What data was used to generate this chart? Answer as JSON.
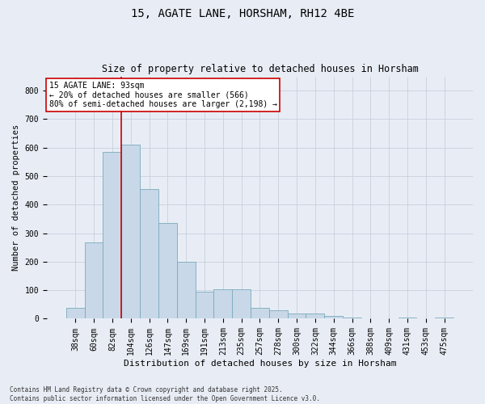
{
  "title": "15, AGATE LANE, HORSHAM, RH12 4BE",
  "subtitle": "Size of property relative to detached houses in Horsham",
  "xlabel": "Distribution of detached houses by size in Horsham",
  "ylabel": "Number of detached properties",
  "categories": [
    "38sqm",
    "60sqm",
    "82sqm",
    "104sqm",
    "126sqm",
    "147sqm",
    "169sqm",
    "191sqm",
    "213sqm",
    "235sqm",
    "257sqm",
    "278sqm",
    "300sqm",
    "322sqm",
    "344sqm",
    "366sqm",
    "388sqm",
    "409sqm",
    "431sqm",
    "453sqm",
    "475sqm"
  ],
  "values": [
    37,
    268,
    585,
    610,
    455,
    335,
    200,
    95,
    103,
    103,
    37,
    30,
    17,
    17,
    10,
    5,
    2,
    1,
    5,
    1,
    5
  ],
  "bar_color": "#c8d8e8",
  "bar_edge_color": "#7aaabb",
  "vline_color": "#cc0000",
  "annotation_text": "15 AGATE LANE: 93sqm\n← 20% of detached houses are smaller (566)\n80% of semi-detached houses are larger (2,198) →",
  "annotation_box_color": "#ffffff",
  "annotation_box_edge_color": "#cc0000",
  "grid_color": "#c8d0dc",
  "bg_color": "#e8edf5",
  "footer": "Contains HM Land Registry data © Crown copyright and database right 2025.\nContains public sector information licensed under the Open Government Licence v3.0.",
  "ylim": [
    0,
    850
  ],
  "yticks": [
    0,
    100,
    200,
    300,
    400,
    500,
    600,
    700,
    800
  ],
  "title_fontsize": 10,
  "subtitle_fontsize": 8.5,
  "xlabel_fontsize": 8,
  "ylabel_fontsize": 7.5,
  "tick_fontsize": 7,
  "annotation_fontsize": 7,
  "footer_fontsize": 5.5
}
